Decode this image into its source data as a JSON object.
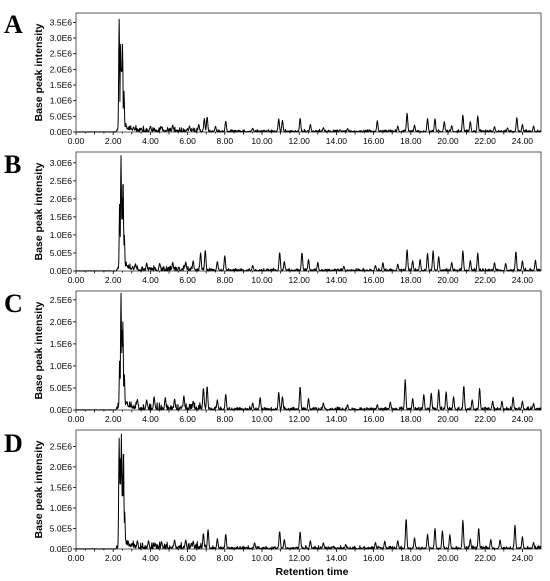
{
  "xlabel": "Retention time",
  "ylabel": "Base peak intensity",
  "chart_data": [
    {
      "type": "line",
      "panel": "A",
      "title": "",
      "xlabel": "",
      "ylabel": "Base peak intensity",
      "xlim": [
        0,
        25
      ],
      "ylim": [
        0,
        3800000
      ],
      "xticks": [
        "0.00",
        "2.00",
        "4.00",
        "6.00",
        "8.00",
        "10.00",
        "12.00",
        "14.00",
        "16.00",
        "18.00",
        "20.00",
        "22.00",
        "24.00"
      ],
      "yticks": [
        "0.0E0",
        "5.0E5",
        "1.0E6",
        "1.5E6",
        "2.0E6",
        "2.5E6",
        "3.0E6",
        "3.5E6"
      ],
      "peaks": [
        [
          2.05,
          0
        ],
        [
          2.2,
          60000
        ],
        [
          2.32,
          3600000
        ],
        [
          2.4,
          2800000
        ],
        [
          2.45,
          2100000
        ],
        [
          2.5,
          2800000
        ],
        [
          2.58,
          1300000
        ],
        [
          2.7,
          150000
        ],
        [
          3.1,
          160000
        ],
        [
          3.5,
          120000
        ],
        [
          4.0,
          180000
        ],
        [
          4.6,
          150000
        ],
        [
          5.2,
          220000
        ],
        [
          6.1,
          190000
        ],
        [
          6.6,
          240000
        ],
        [
          6.9,
          430000
        ],
        [
          7.05,
          480000
        ],
        [
          7.5,
          180000
        ],
        [
          8.05,
          350000
        ],
        [
          9.5,
          120000
        ],
        [
          10.9,
          420000
        ],
        [
          11.1,
          370000
        ],
        [
          12.05,
          440000
        ],
        [
          12.6,
          240000
        ],
        [
          13.3,
          140000
        ],
        [
          14.6,
          110000
        ],
        [
          16.2,
          360000
        ],
        [
          17.3,
          190000
        ],
        [
          17.8,
          600000
        ],
        [
          18.2,
          220000
        ],
        [
          18.9,
          430000
        ],
        [
          19.3,
          420000
        ],
        [
          19.8,
          330000
        ],
        [
          20.2,
          200000
        ],
        [
          20.8,
          540000
        ],
        [
          21.2,
          330000
        ],
        [
          21.6,
          510000
        ],
        [
          22.5,
          170000
        ],
        [
          23.2,
          130000
        ],
        [
          23.7,
          460000
        ],
        [
          24.0,
          240000
        ],
        [
          24.6,
          190000
        ]
      ]
    },
    {
      "type": "line",
      "panel": "B",
      "title": "",
      "xlabel": "",
      "ylabel": "Base peak intensity",
      "xlim": [
        0,
        25
      ],
      "ylim": [
        0,
        3300000
      ],
      "xticks": [
        "0.00",
        "2.00",
        "4.00",
        "6.00",
        "8.00",
        "10.00",
        "12.00",
        "14.00",
        "16.00",
        "18.00",
        "20.00",
        "22.00",
        "24.00"
      ],
      "yticks": [
        "0.0E0",
        "5.0E5",
        "1.0E6",
        "1.5E6",
        "2.0E6",
        "2.5E6",
        "3.0E6"
      ],
      "peaks": [
        [
          2.1,
          0
        ],
        [
          2.22,
          60000
        ],
        [
          2.35,
          2000000
        ],
        [
          2.42,
          3200000
        ],
        [
          2.48,
          2000000
        ],
        [
          2.53,
          2600000
        ],
        [
          2.6,
          1000000
        ],
        [
          2.75,
          160000
        ],
        [
          3.2,
          200000
        ],
        [
          3.8,
          220000
        ],
        [
          4.5,
          210000
        ],
        [
          5.2,
          240000
        ],
        [
          5.9,
          250000
        ],
        [
          6.3,
          280000
        ],
        [
          6.7,
          500000
        ],
        [
          6.95,
          580000
        ],
        [
          7.6,
          260000
        ],
        [
          8.0,
          420000
        ],
        [
          9.5,
          150000
        ],
        [
          10.95,
          520000
        ],
        [
          11.2,
          260000
        ],
        [
          12.15,
          510000
        ],
        [
          12.5,
          320000
        ],
        [
          13.0,
          240000
        ],
        [
          14.4,
          130000
        ],
        [
          16.1,
          150000
        ],
        [
          16.5,
          230000
        ],
        [
          17.3,
          190000
        ],
        [
          17.8,
          590000
        ],
        [
          18.1,
          280000
        ],
        [
          18.5,
          320000
        ],
        [
          18.9,
          490000
        ],
        [
          19.2,
          560000
        ],
        [
          19.5,
          400000
        ],
        [
          20.2,
          240000
        ],
        [
          20.8,
          560000
        ],
        [
          21.2,
          290000
        ],
        [
          21.6,
          500000
        ],
        [
          22.5,
          230000
        ],
        [
          23.1,
          210000
        ],
        [
          23.65,
          540000
        ],
        [
          24.0,
          280000
        ],
        [
          24.7,
          300000
        ]
      ]
    },
    {
      "type": "line",
      "panel": "C",
      "title": "",
      "xlabel": "",
      "ylabel": "Base peak intensity",
      "xlim": [
        0,
        25
      ],
      "ylim": [
        0,
        2700000
      ],
      "xticks": [
        "0.00",
        "2.00",
        "4.00",
        "6.00",
        "8.00",
        "10.00",
        "12.00",
        "14.00",
        "16.00",
        "18.00",
        "20.00",
        "22.00",
        "24.00"
      ],
      "yticks": [
        "0.0E0",
        "5.0E5",
        "1.0E6",
        "1.5E6",
        "2.0E6",
        "2.5E6"
      ],
      "peaks": [
        [
          2.1,
          0
        ],
        [
          2.2,
          60000
        ],
        [
          2.35,
          1200000
        ],
        [
          2.42,
          2650000
        ],
        [
          2.48,
          1800000
        ],
        [
          2.52,
          2000000
        ],
        [
          2.6,
          800000
        ],
        [
          2.75,
          200000
        ],
        [
          3.3,
          240000
        ],
        [
          3.8,
          230000
        ],
        [
          4.2,
          300000
        ],
        [
          4.8,
          280000
        ],
        [
          5.3,
          250000
        ],
        [
          5.8,
          320000
        ],
        [
          6.3,
          200000
        ],
        [
          6.85,
          500000
        ],
        [
          7.05,
          540000
        ],
        [
          7.6,
          230000
        ],
        [
          8.05,
          360000
        ],
        [
          9.5,
          160000
        ],
        [
          9.9,
          280000
        ],
        [
          10.9,
          400000
        ],
        [
          11.1,
          300000
        ],
        [
          12.05,
          530000
        ],
        [
          12.5,
          260000
        ],
        [
          13.3,
          160000
        ],
        [
          14.6,
          120000
        ],
        [
          16.2,
          120000
        ],
        [
          16.9,
          180000
        ],
        [
          17.7,
          690000
        ],
        [
          18.1,
          260000
        ],
        [
          18.7,
          350000
        ],
        [
          19.1,
          380000
        ],
        [
          19.5,
          460000
        ],
        [
          19.9,
          410000
        ],
        [
          20.3,
          300000
        ],
        [
          20.85,
          550000
        ],
        [
          21.3,
          230000
        ],
        [
          21.7,
          490000
        ],
        [
          22.4,
          200000
        ],
        [
          22.9,
          200000
        ],
        [
          23.5,
          290000
        ],
        [
          24.0,
          200000
        ],
        [
          24.6,
          150000
        ]
      ]
    },
    {
      "type": "line",
      "panel": "D",
      "title": "",
      "xlabel": "Retention time",
      "ylabel": "Base peak intensity",
      "xlim": [
        0,
        25
      ],
      "ylim": [
        0,
        2900000
      ],
      "xticks": [
        "0.00",
        "2.00",
        "4.00",
        "6.00",
        "8.00",
        "10.00",
        "12.00",
        "14.00",
        "16.00",
        "18.00",
        "20.00",
        "22.00",
        "24.00"
      ],
      "yticks": [
        "0.0E0",
        "5.0E5",
        "1.0E6",
        "1.5E6",
        "2.0E6",
        "2.5E6"
      ],
      "peaks": [
        [
          2.05,
          0
        ],
        [
          2.2,
          80000
        ],
        [
          2.32,
          2700000
        ],
        [
          2.38,
          2200000
        ],
        [
          2.44,
          2800000
        ],
        [
          2.5,
          1800000
        ],
        [
          2.55,
          2500000
        ],
        [
          2.62,
          900000
        ],
        [
          2.8,
          200000
        ],
        [
          3.3,
          200000
        ],
        [
          3.9,
          200000
        ],
        [
          4.6,
          180000
        ],
        [
          5.3,
          220000
        ],
        [
          5.9,
          220000
        ],
        [
          6.3,
          190000
        ],
        [
          6.85,
          380000
        ],
        [
          7.1,
          470000
        ],
        [
          7.6,
          250000
        ],
        [
          8.05,
          360000
        ],
        [
          9.6,
          150000
        ],
        [
          10.95,
          430000
        ],
        [
          11.2,
          230000
        ],
        [
          12.05,
          420000
        ],
        [
          12.6,
          200000
        ],
        [
          13.3,
          150000
        ],
        [
          14.5,
          110000
        ],
        [
          16.1,
          160000
        ],
        [
          16.6,
          190000
        ],
        [
          17.3,
          200000
        ],
        [
          17.75,
          740000
        ],
        [
          18.2,
          270000
        ],
        [
          18.9,
          360000
        ],
        [
          19.3,
          500000
        ],
        [
          19.7,
          440000
        ],
        [
          20.1,
          350000
        ],
        [
          20.8,
          700000
        ],
        [
          21.2,
          240000
        ],
        [
          21.65,
          510000
        ],
        [
          22.3,
          230000
        ],
        [
          22.8,
          220000
        ],
        [
          23.6,
          580000
        ],
        [
          24.0,
          300000
        ],
        [
          24.6,
          160000
        ]
      ]
    }
  ]
}
